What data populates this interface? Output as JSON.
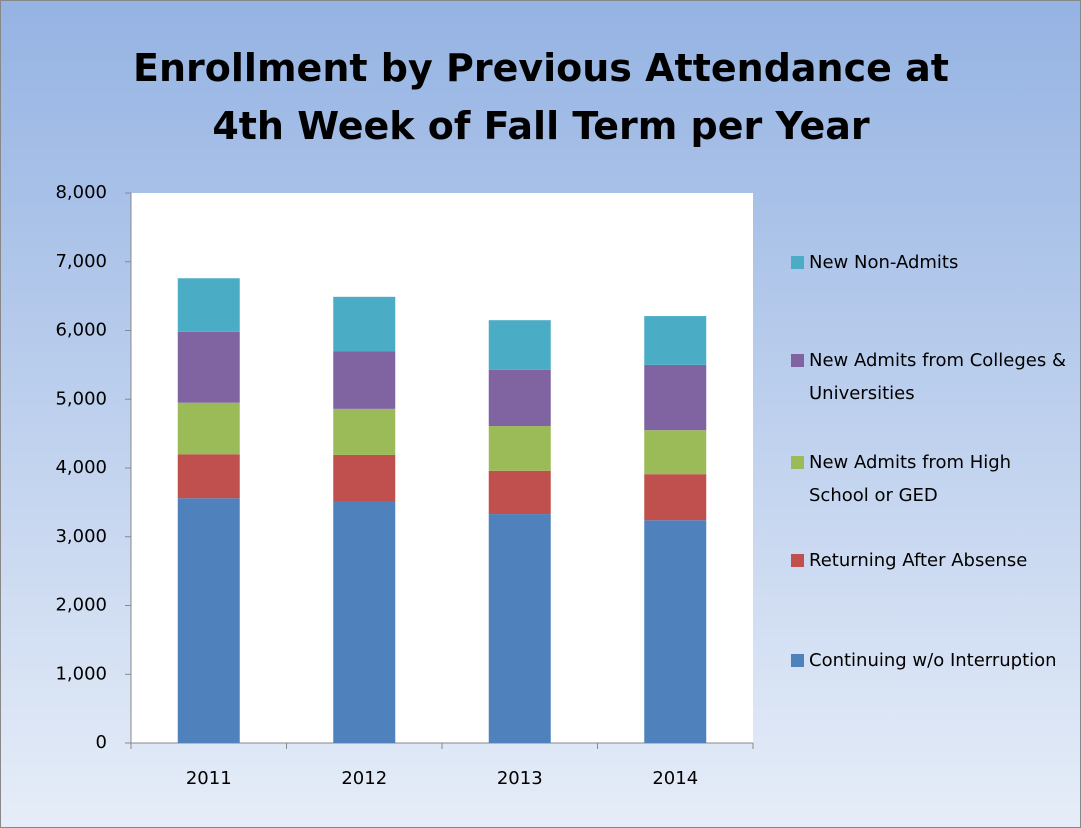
{
  "chart_data": {
    "type": "stacked_bar",
    "title": "Enrollment by Previous Attendance at 4th Week of Fall Term per Year",
    "categories": [
      "2011",
      "2012",
      "2013",
      "2014"
    ],
    "series": [
      {
        "name": "Continuing w/o Interruption",
        "color": "#4f81bd",
        "values": [
          3560,
          3520,
          3330,
          3240
        ]
      },
      {
        "name": "Returning After Absense",
        "color": "#c0504d",
        "values": [
          640,
          670,
          630,
          670
        ]
      },
      {
        "name": "New Admits from High School or GED",
        "color": "#9bbb59",
        "values": [
          750,
          670,
          650,
          640
        ]
      },
      {
        "name": "New Admits from Colleges & Universities",
        "color": "#8064a2",
        "values": [
          1030,
          840,
          820,
          950
        ]
      },
      {
        "name": "New Non-Admits",
        "color": "#4bacc6",
        "values": [
          780,
          790,
          720,
          710
        ]
      }
    ],
    "ylim": [
      0,
      8000
    ],
    "yticks": [
      0,
      {
        "value": 1000,
        "label": "1,000"
      },
      {
        "value": 2000,
        "label": "2,000"
      },
      {
        "value": 3000,
        "label": "3,000"
      },
      {
        "value": 4000,
        "label": "4,000"
      },
      {
        "value": 5000,
        "label": "5,000"
      },
      {
        "value": 6000,
        "label": "6,000"
      },
      {
        "value": 7000,
        "label": "7,000"
      },
      {
        "value": 8000,
        "label": "8,000"
      }
    ],
    "legend": "right"
  }
}
